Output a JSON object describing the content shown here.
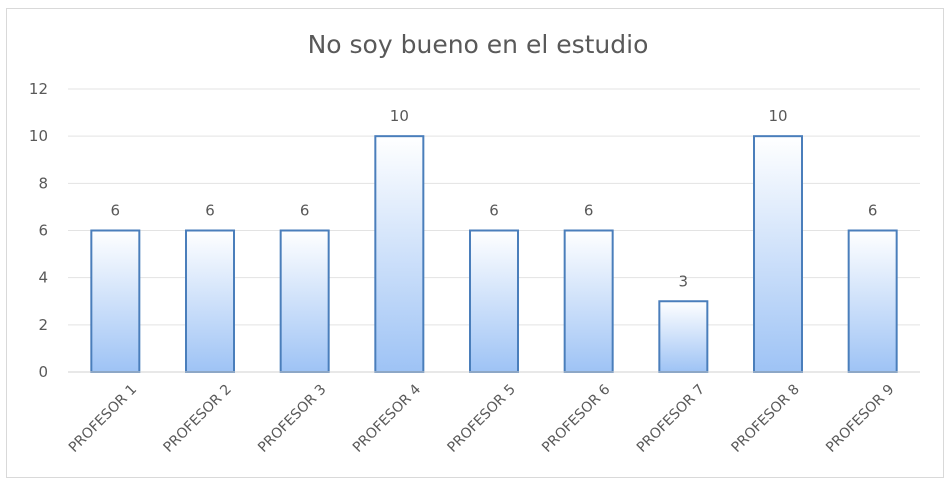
{
  "chart_data": {
    "type": "bar",
    "title": "No soy bueno en el estudio",
    "categories": [
      "PROFESOR 1",
      "PROFESOR 2",
      "PROFESOR 3",
      "PROFESOR 4",
      "PROFESOR 5",
      "PROFESOR 6",
      "PROFESOR 7",
      "PROFESOR 8",
      "PROFESOR 9"
    ],
    "values": [
      6,
      6,
      6,
      10,
      6,
      6,
      3,
      10,
      6
    ],
    "ylim": [
      0,
      12
    ],
    "yticks": [
      "0",
      "2",
      "4",
      "6",
      "8",
      "10",
      "12"
    ],
    "xlabel": "",
    "ylabel": "",
    "grid": true,
    "legend": "none",
    "colors": {
      "bar_top": "#ffffff",
      "bar_bottom": "#9ec3f5",
      "bar_border": "#4a7ebb"
    }
  }
}
